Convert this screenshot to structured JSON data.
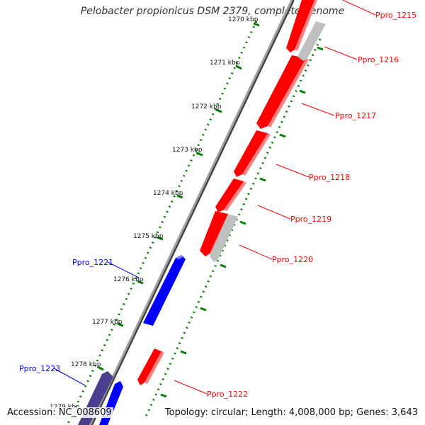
{
  "title": "Pelobacter propionicus DSM 2379, complete genome",
  "accession": "Accession: NC_008609",
  "summary": "Topology: circular; Length: 4,008,000 bp; Genes: 3,643",
  "colors": {
    "forward_gene": "#ff0000",
    "reverse_gene": "#0000ff",
    "pseudo_gene": "#c0c0c0",
    "dark_gene": "#4a3f8f",
    "backbone": "#808080",
    "tick_line": "#008000"
  },
  "ticks": [
    "1270 kbp",
    "1271 kbp",
    "1272 kbp",
    "1273 kbp",
    "1274 kbp",
    "1275 kbp",
    "1276 kbp",
    "1277 kbp",
    "1278 kbp",
    "1279 kbp"
  ],
  "gene_labels": {
    "g1215": "Ppro_1215",
    "g1216": "Ppro_1216",
    "g1217": "Ppro_1217",
    "g1218": "Ppro_1218",
    "g1219": "Ppro_1219",
    "g1220": "Ppro_1220",
    "g1221": "Ppro_1221",
    "g1222": "Ppro_1222",
    "g1223": "Ppro_1223"
  }
}
